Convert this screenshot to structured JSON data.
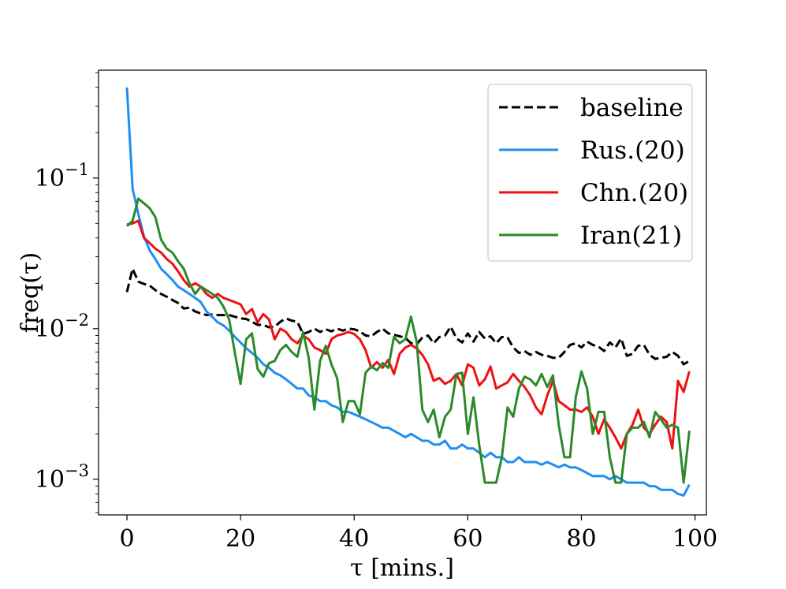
{
  "chart_data": {
    "type": "line",
    "xlabel": "τ [mins.]",
    "ylabel": "freq(τ)",
    "xlim": [
      -5,
      102
    ],
    "ylim": [
      0.00058,
      0.52
    ],
    "yscale": "log",
    "grid": false,
    "legend_position": "top-right",
    "x_ticks": [
      0,
      20,
      40,
      60,
      80,
      100
    ],
    "x_tick_labels": [
      "0",
      "20",
      "40",
      "60",
      "80",
      "100"
    ],
    "y_ticks": [
      0.001,
      0.01,
      0.1
    ],
    "y_tick_labels": [
      {
        "base": "10",
        "exp": "−3"
      },
      {
        "base": "10",
        "exp": "−2"
      },
      {
        "base": "10",
        "exp": "−1"
      }
    ],
    "series": [
      {
        "name": "baseline",
        "color": "#000000",
        "dash": "dashed",
        "x_start": 0,
        "x_step": 1,
        "values": [
          0.0175,
          0.025,
          0.0205,
          0.0198,
          0.0193,
          0.018,
          0.017,
          0.0163,
          0.0155,
          0.0148,
          0.0136,
          0.0138,
          0.013,
          0.0126,
          0.0123,
          0.0124,
          0.0123,
          0.0123,
          0.0123,
          0.012,
          0.0117,
          0.0116,
          0.0111,
          0.0106,
          0.0106,
          0.0102,
          0.0103,
          0.0111,
          0.0117,
          0.0113,
          0.0111,
          0.0092,
          0.0095,
          0.01,
          0.0095,
          0.0099,
          0.0096,
          0.01,
          0.0097,
          0.01,
          0.0099,
          0.0096,
          0.009,
          0.0089,
          0.0095,
          0.01,
          0.0093,
          0.0091,
          0.0089,
          0.0087,
          0.008,
          0.0079,
          0.0087,
          0.009,
          0.008,
          0.0088,
          0.009,
          0.0103,
          0.0086,
          0.0081,
          0.0093,
          0.0082,
          0.0095,
          0.0086,
          0.0089,
          0.008,
          0.0088,
          0.0087,
          0.0075,
          0.0069,
          0.0071,
          0.0067,
          0.007,
          0.0067,
          0.0066,
          0.0064,
          0.0064,
          0.007,
          0.0078,
          0.008,
          0.0075,
          0.0082,
          0.0078,
          0.0076,
          0.0071,
          0.0081,
          0.0075,
          0.0086,
          0.0066,
          0.0068,
          0.0077,
          0.0078,
          0.0067,
          0.0063,
          0.0064,
          0.0065,
          0.007,
          0.0066,
          0.0058,
          0.0061
        ]
      },
      {
        "name": "Rus.(20)",
        "color": "#1f8ef1",
        "dash": "solid",
        "x_start": 0,
        "x_step": 1,
        "values": [
          0.4,
          0.085,
          0.058,
          0.041,
          0.033,
          0.029,
          0.025,
          0.023,
          0.021,
          0.019,
          0.018,
          0.017,
          0.016,
          0.015,
          0.013,
          0.012,
          0.011,
          0.0105,
          0.0097,
          0.0088,
          0.0081,
          0.0074,
          0.0069,
          0.0064,
          0.0058,
          0.0055,
          0.0051,
          0.0049,
          0.0046,
          0.0043,
          0.004,
          0.004,
          0.0036,
          0.0035,
          0.0033,
          0.0033,
          0.0031,
          0.003,
          0.0028,
          0.0028,
          0.0027,
          0.0026,
          0.0025,
          0.0024,
          0.0023,
          0.0022,
          0.0022,
          0.0021,
          0.002,
          0.0019,
          0.002,
          0.0019,
          0.0018,
          0.0018,
          0.0017,
          0.0017,
          0.0018,
          0.0016,
          0.0016,
          0.0017,
          0.0016,
          0.0016,
          0.0015,
          0.0014,
          0.0015,
          0.0014,
          0.0014,
          0.0013,
          0.0013,
          0.0014,
          0.0013,
          0.0013,
          0.0013,
          0.00125,
          0.0013,
          0.00125,
          0.0012,
          0.00125,
          0.0012,
          0.0012,
          0.00115,
          0.0011,
          0.00105,
          0.00105,
          0.00105,
          0.001,
          0.00105,
          0.001,
          0.00095,
          0.00095,
          0.00095,
          0.00095,
          0.0009,
          0.0009,
          0.00085,
          0.00085,
          0.00085,
          0.0008,
          0.00078,
          0.00092
        ]
      },
      {
        "name": "Chn.(20)",
        "color": "#ee1111",
        "dash": "solid",
        "x_start": 0,
        "x_step": 1,
        "values": [
          0.049,
          0.05,
          0.052,
          0.04,
          0.037,
          0.034,
          0.032,
          0.029,
          0.027,
          0.024,
          0.021,
          0.019,
          0.02,
          0.019,
          0.017,
          0.016,
          0.017,
          0.016,
          0.0155,
          0.015,
          0.0145,
          0.0125,
          0.0135,
          0.011,
          0.0125,
          0.0115,
          0.0085,
          0.01,
          0.0095,
          0.0085,
          0.008,
          0.009,
          0.0085,
          0.0075,
          0.0072,
          0.0068,
          0.0085,
          0.009,
          0.0092,
          0.0095,
          0.0092,
          0.0085,
          0.0072,
          0.0055,
          0.006,
          0.0055,
          0.0062,
          0.005,
          0.0068,
          0.0075,
          0.0078,
          0.0074,
          0.0067,
          0.0058,
          0.0045,
          0.0047,
          0.0043,
          0.0045,
          0.005,
          0.0042,
          0.0058,
          0.0055,
          0.0042,
          0.0046,
          0.0056,
          0.004,
          0.0042,
          0.0044,
          0.005,
          0.0045,
          0.0041,
          0.0036,
          0.003,
          0.0027,
          0.0036,
          0.0045,
          0.0033,
          0.0031,
          0.0029,
          0.0029,
          0.0028,
          0.003,
          0.0026,
          0.002,
          0.0025,
          0.0022,
          0.0019,
          0.0016,
          0.002,
          0.0023,
          0.0029,
          0.0022,
          0.002,
          0.0023,
          0.0026,
          0.0024,
          0.0016,
          0.0045,
          0.0038,
          0.0052
        ]
      },
      {
        "name": "Iran(21)",
        "color": "#2a8a2a",
        "dash": "solid",
        "x_start": 0,
        "x_step": 1,
        "values": [
          0.048,
          0.052,
          0.073,
          0.068,
          0.063,
          0.055,
          0.039,
          0.034,
          0.032,
          0.028,
          0.025,
          0.02,
          0.017,
          0.019,
          0.018,
          0.017,
          0.016,
          0.014,
          0.0115,
          0.0069,
          0.0043,
          0.0085,
          0.0093,
          0.0054,
          0.0048,
          0.0059,
          0.0061,
          0.0072,
          0.0078,
          0.007,
          0.0065,
          0.0095,
          0.0064,
          0.0029,
          0.0061,
          0.0077,
          0.0058,
          0.0047,
          0.0024,
          0.0033,
          0.0033,
          0.0027,
          0.0051,
          0.0056,
          0.0053,
          0.0059,
          0.0055,
          0.0088,
          0.008,
          0.0085,
          0.012,
          0.0082,
          0.0029,
          0.0024,
          0.0029,
          0.0019,
          0.0026,
          0.0029,
          0.005,
          0.0051,
          0.002,
          0.0035,
          0.0017,
          0.00095,
          0.00095,
          0.00095,
          0.0014,
          0.003,
          0.0026,
          0.004,
          0.0048,
          0.0046,
          0.0042,
          0.005,
          0.0041,
          0.0049,
          0.0023,
          0.0014,
          0.0014,
          0.0035,
          0.0052,
          0.004,
          0.002,
          0.0028,
          0.0028,
          0.0014,
          0.00095,
          0.00095,
          0.002,
          0.0022,
          0.0022,
          0.0024,
          0.0019,
          0.0028,
          0.0025,
          0.0022,
          0.0023,
          0.0022,
          0.00095,
          0.0021
        ]
      }
    ]
  }
}
